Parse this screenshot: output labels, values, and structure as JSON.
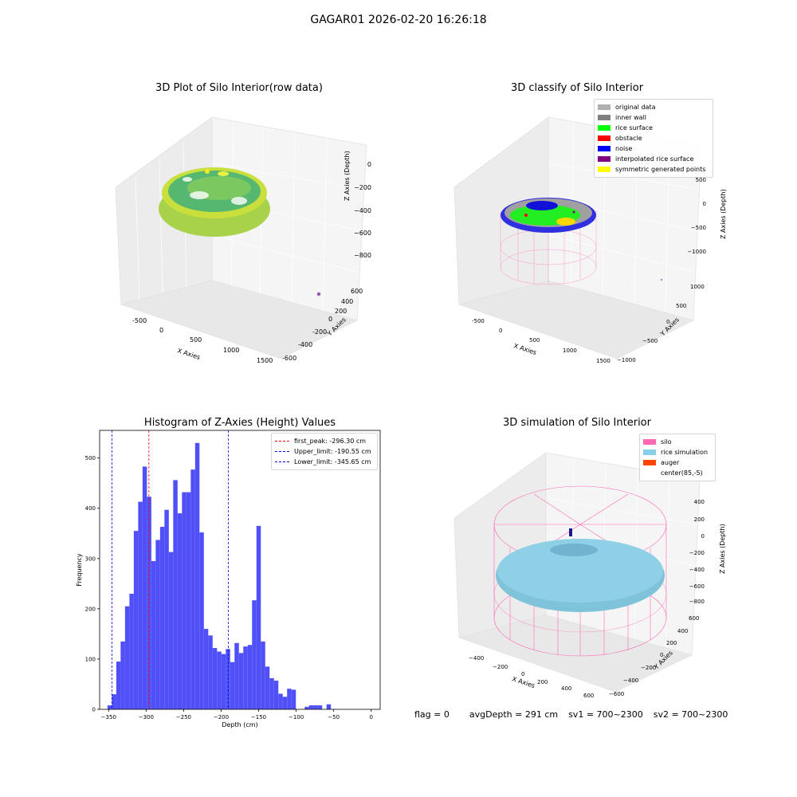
{
  "suptitle": "GAGAR01 2026-02-20 16:26:18",
  "status": {
    "flag": "flag = 0",
    "avg_depth": "avgDepth = 291 cm",
    "sv1": "sv1 = 700~2300",
    "sv2": "sv2 = 700~2300"
  },
  "panels": {
    "raw": {
      "title": "3D Plot of Silo Interior(row data)",
      "xlabel": "X Axies",
      "ylabel": "Y Axies",
      "zlabel": "Z Axies (Depth)",
      "xticks": [
        "-500",
        "0",
        "500",
        "1000",
        "1500"
      ],
      "yticks": [
        "-600",
        "-400",
        "-200",
        "0",
        "200",
        "400",
        "600"
      ],
      "zticks": [
        "0",
        "−200",
        "−400",
        "−600",
        "−800"
      ],
      "colors": {
        "surface": "#9acd32",
        "top": "#c8e03c",
        "inner": "#2e8b57",
        "spot": "#fde725",
        "outlier": "#9b59b6"
      }
    },
    "classify": {
      "title": "3D classify of Silo Interior",
      "xlabel": "X Axies",
      "ylabel": "Y Axies",
      "zlabel": "Z Axies (Depth)",
      "xticks": [
        "-500",
        "0",
        "500",
        "1000",
        "1500"
      ],
      "yticks": [
        "−1000",
        "−500",
        "0",
        "500",
        "1000"
      ],
      "zticks": [
        "500",
        "0",
        "−500",
        "−1000"
      ],
      "legend": [
        {
          "label": "original data",
          "color": "#b0b0b0"
        },
        {
          "label": "inner wall",
          "color": "#808080"
        },
        {
          "label": "rice surface",
          "color": "#00ff00"
        },
        {
          "label": "obstacle",
          "color": "#ff0000"
        },
        {
          "label": "noise",
          "color": "#0000ff"
        },
        {
          "label": "interpolated rice surface",
          "color": "#800080"
        },
        {
          "label": "symmetric generated points",
          "color": "#ffff00"
        }
      ]
    },
    "simulation": {
      "title": "3D simulation of Silo Interior",
      "xlabel": "X Axies",
      "ylabel": "Y Axies",
      "zlabel": "Z Axies (Depth)",
      "xticks": [
        "−400",
        "−200",
        "0",
        "200",
        "400",
        "600"
      ],
      "yticks": [
        "−600",
        "−400",
        "−200",
        "0",
        "200",
        "400",
        "600"
      ],
      "zticks": [
        "400",
        "200",
        "0",
        "−200",
        "−400",
        "−600",
        "−800"
      ],
      "legend": [
        {
          "label": "silo",
          "color": "#ff69b4"
        },
        {
          "label": "rice simulation",
          "color": "#87ceeb"
        },
        {
          "label": "auger",
          "color": "#ff4500"
        },
        {
          "label": "center(85,-5)",
          "color": "#ffffff"
        }
      ]
    }
  },
  "chart_data": {
    "type": "bar",
    "title": "Histogram of Z-Axies (Height) Values",
    "xlabel": "Depth (cm)",
    "ylabel": "Frequency",
    "xlim": [
      -362,
      12
    ],
    "ylim": [
      0,
      555
    ],
    "xticks": [
      -350,
      -300,
      -250,
      -200,
      -150,
      -100,
      -50,
      0
    ],
    "yticks": [
      0,
      100,
      200,
      300,
      400,
      500
    ],
    "bin_width": 5.84,
    "bin_start": -351.5,
    "bar_color": "#5050f8",
    "values": [
      8,
      30,
      95,
      135,
      205,
      230,
      355,
      413,
      483,
      423,
      295,
      337,
      363,
      397,
      313,
      456,
      390,
      432,
      432,
      477,
      530,
      352,
      160,
      147,
      122,
      115,
      110,
      120,
      94,
      132,
      112,
      125,
      128,
      217,
      365,
      135,
      85,
      62,
      57,
      31,
      25,
      41,
      39,
      0,
      0,
      5,
      8,
      8,
      8,
      0,
      10
    ],
    "vlines": [
      {
        "label": "first_peak: -296.30 cm",
        "x": -296.3,
        "color": "#ff0000"
      },
      {
        "label": "Upper_limit: -190.55 cm",
        "x": -190.55,
        "color": "#0000ff"
      },
      {
        "label": "Lower_limit: -345.65 cm",
        "x": -345.65,
        "color": "#0000ff"
      }
    ]
  }
}
